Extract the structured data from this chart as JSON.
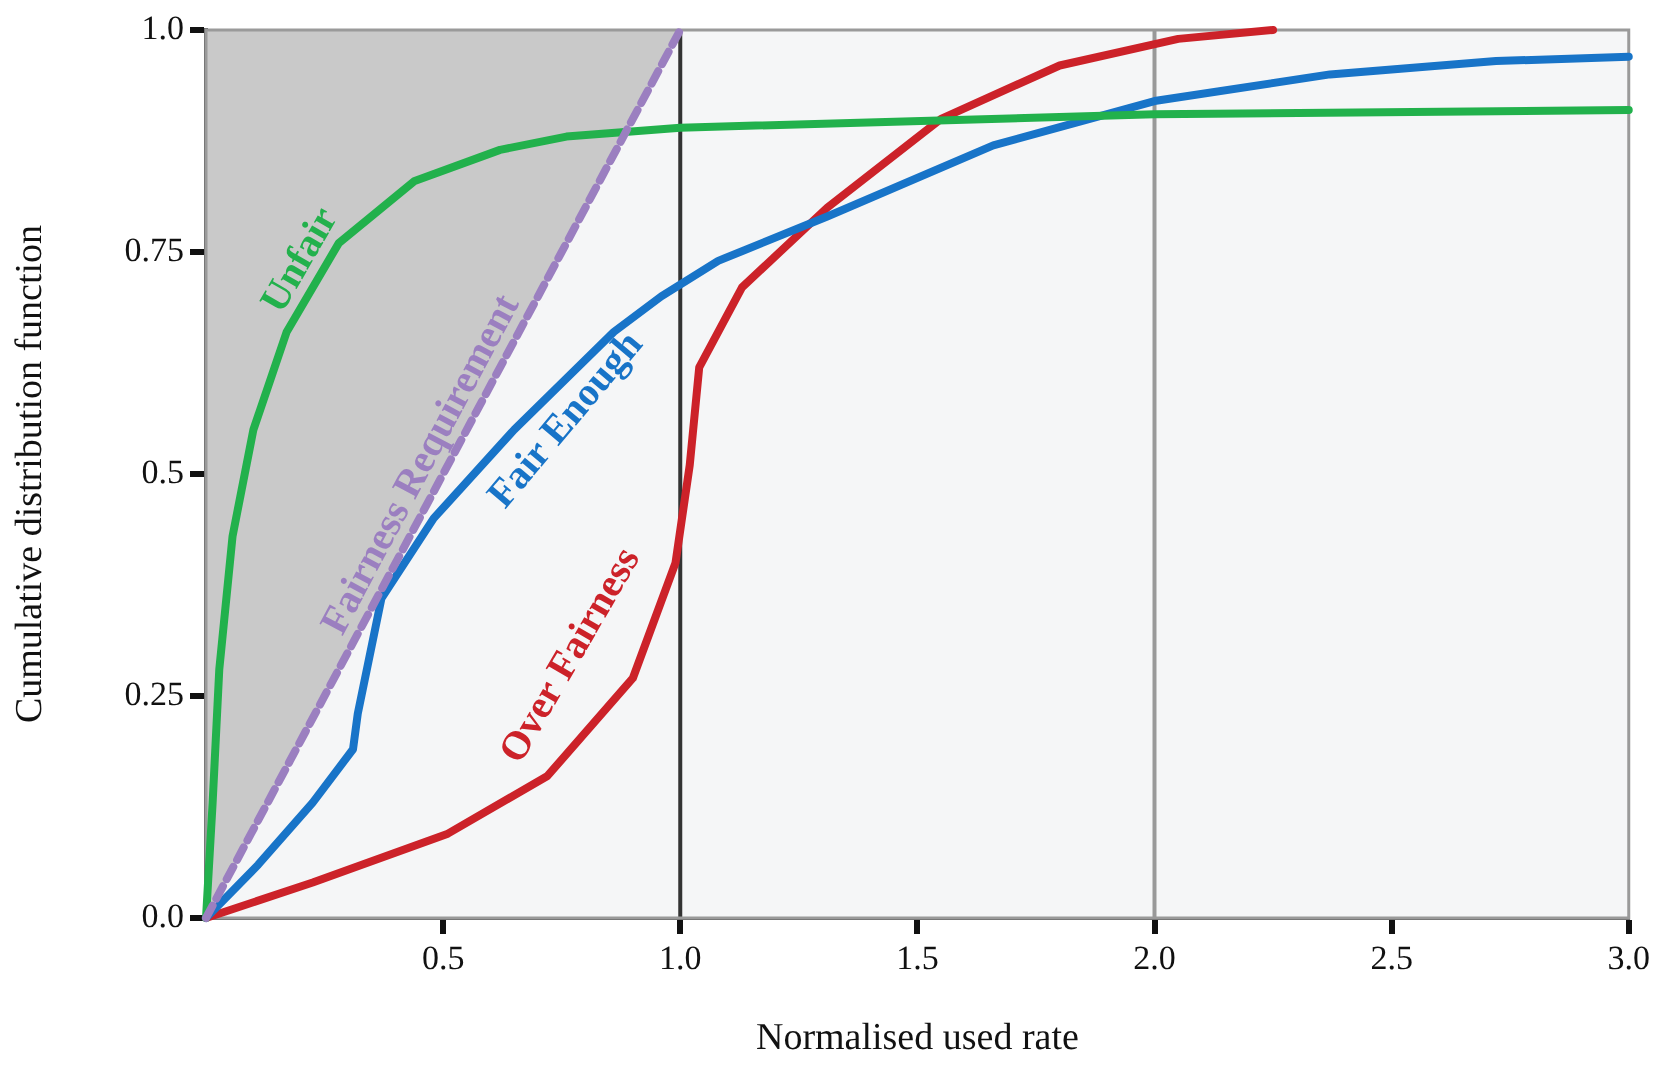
{
  "chart_data": {
    "type": "line",
    "xlabel": "Normalised used rate",
    "ylabel": "Cumulative distribution function",
    "xlim": [
      0,
      3
    ],
    "ylim": [
      0,
      1
    ],
    "xticks": [
      0.5,
      {
        "value": 1,
        "label": "1.0"
      },
      1.5,
      {
        "value": 2,
        "label": "2.0"
      },
      2.5,
      {
        "value": 3,
        "label": "3.0"
      }
    ],
    "yticks": [
      {
        "value": 0,
        "label": "0.0"
      },
      0.25,
      0.5,
      0.75,
      {
        "value": 1,
        "label": "1.0"
      }
    ],
    "marker": "none",
    "series": [
      {
        "name": "Fairness Requirement",
        "color": "#9b7fc0",
        "line_style": "dashed",
        "x": [
          0,
          1
        ],
        "values": [
          0,
          1
        ],
        "lower": [
          0,
          1
        ],
        "upper": [
          1,
          1
        ]
      },
      {
        "name": "Unfair",
        "color": "#22b14c",
        "x": [
          0,
          0.014,
          0.028,
          0.056,
          0.1,
          0.17,
          0.28,
          0.44,
          0.62,
          0.76,
          1,
          2,
          3
        ],
        "values": [
          0,
          0.13,
          0.28,
          0.43,
          0.55,
          0.66,
          0.76,
          0.83,
          0.865,
          0.88,
          0.89,
          0.905,
          0.91
        ]
      },
      {
        "name": "Fair Enough",
        "color": "#1874c8",
        "x": [
          0,
          0.11,
          0.225,
          0.31,
          0.32,
          0.37,
          0.48,
          0.65,
          0.86,
          0.96,
          1.08,
          1.31,
          1.66,
          2,
          2.37,
          2.72,
          3
        ],
        "values": [
          0,
          0.06,
          0.13,
          0.19,
          0.23,
          0.36,
          0.45,
          0.55,
          0.66,
          0.7,
          0.74,
          0.79,
          0.87,
          0.92,
          0.95,
          0.965,
          0.97
        ]
      },
      {
        "name": "Over Fairness",
        "color": "#cc2229",
        "x": [
          0,
          0.225,
          0.51,
          0.72,
          0.9,
          0.99,
          1.02,
          1.04,
          1.13,
          1.31,
          1.55,
          1.8,
          2.05,
          2.25
        ],
        "values": [
          0,
          0.04,
          0.095,
          0.16,
          0.27,
          0.4,
          0.51,
          0.62,
          0.71,
          0.8,
          0.9,
          0.96,
          0.99,
          1
        ]
      }
    ],
    "ref_lines": [
      {
        "axis": "x",
        "value": 1,
        "color": "#333333"
      },
      {
        "axis": "x",
        "value": 2,
        "color": "#999999"
      }
    ]
  }
}
